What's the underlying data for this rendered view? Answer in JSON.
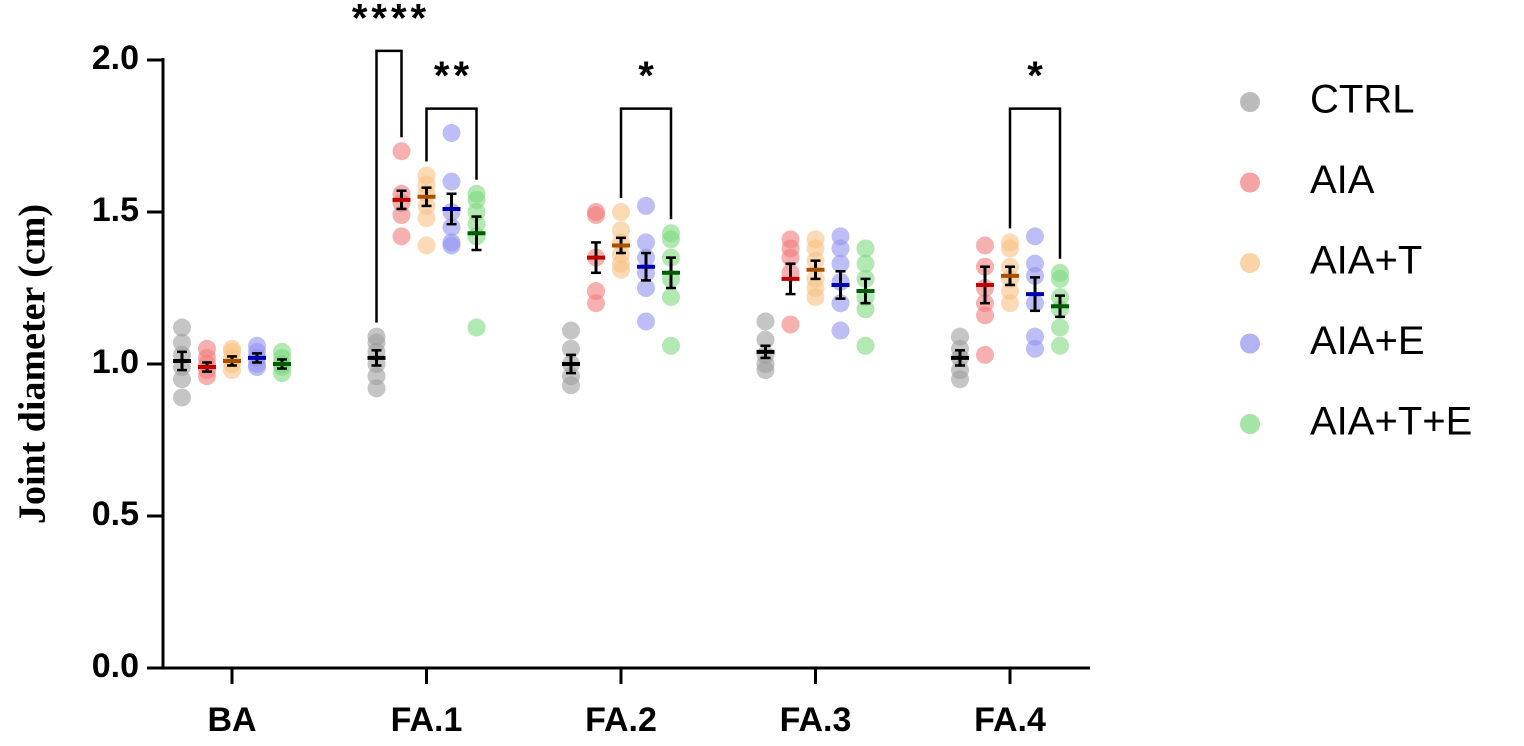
{
  "chart_data": {
    "type": "dot",
    "y_label": "Joint diameter (cm)",
    "categories": [
      "BA",
      "FA.1",
      "FA.2",
      "FA.3",
      "FA.4"
    ],
    "ylim": [
      0,
      2
    ],
    "yticks": [
      {
        "value": 0,
        "label": "0.0"
      },
      {
        "value": 0.5,
        "label": "0.5"
      },
      {
        "value": 1,
        "label": "1.0"
      },
      {
        "value": 1.5,
        "label": "1.5"
      },
      {
        "value": 2,
        "label": "2.0"
      }
    ],
    "series": [
      {
        "name": "CTRL",
        "color": "#9e9e9e",
        "mean_color": "#000000",
        "points": [
          [
            1.12,
            1.07,
            1.03,
            0.99,
            0.95,
            0.89
          ],
          [
            1.09,
            1.07,
            1.04,
            1.0,
            0.96,
            0.92
          ],
          [
            1.11,
            1.05,
            1.0,
            0.96,
            0.93
          ],
          [
            1.14,
            1.08,
            1.03,
            1.0,
            0.98
          ],
          [
            1.09,
            1.05,
            1.02,
            0.98,
            0.95
          ]
        ],
        "mean": [
          1.01,
          1.02,
          1.0,
          1.04,
          1.02
        ],
        "sem": [
          0.03,
          0.025,
          0.03,
          0.02,
          0.025
        ]
      },
      {
        "name": "AIA",
        "color": "#f27c7c",
        "mean_color": "#c00000",
        "points": [
          [
            1.05,
            1.02,
            1.0,
            0.98,
            0.96
          ],
          [
            1.7,
            1.56,
            1.53,
            1.49,
            1.42
          ],
          [
            1.5,
            1.49,
            1.35,
            1.24,
            1.2
          ],
          [
            1.41,
            1.38,
            1.35,
            1.3,
            1.13
          ],
          [
            1.39,
            1.32,
            1.25,
            1.2,
            1.16,
            1.03
          ]
        ],
        "mean": [
          0.99,
          1.54,
          1.35,
          1.28,
          1.26
        ],
        "sem": [
          0.015,
          0.03,
          0.05,
          0.05,
          0.06
        ]
      },
      {
        "name": "AIA+T",
        "color": "#f9c183",
        "mean_color": "#a85000",
        "points": [
          [
            1.05,
            1.04,
            1.02,
            1.0,
            0.98
          ],
          [
            1.62,
            1.59,
            1.56,
            1.52,
            1.48,
            1.39
          ],
          [
            1.5,
            1.44,
            1.4,
            1.36,
            1.33,
            1.31
          ],
          [
            1.41,
            1.38,
            1.34,
            1.28,
            1.25,
            1.22
          ],
          [
            1.4,
            1.38,
            1.32,
            1.28,
            1.24,
            1.2
          ]
        ],
        "mean": [
          1.01,
          1.55,
          1.39,
          1.31,
          1.29
        ],
        "sem": [
          0.015,
          0.03,
          0.025,
          0.03,
          0.03
        ]
      },
      {
        "name": "AIA+E",
        "color": "#9393f0",
        "mean_color": "#0000b0",
        "points": [
          [
            1.06,
            1.04,
            1.02,
            1.0,
            0.99
          ],
          [
            1.76,
            1.6,
            1.5,
            1.45,
            1.4,
            1.39
          ],
          [
            1.52,
            1.4,
            1.35,
            1.3,
            1.25,
            1.14
          ],
          [
            1.42,
            1.38,
            1.33,
            1.27,
            1.2,
            1.11
          ],
          [
            1.42,
            1.33,
            1.29,
            1.2,
            1.09,
            1.05
          ]
        ],
        "mean": [
          1.02,
          1.51,
          1.32,
          1.26,
          1.23
        ],
        "sem": [
          0.015,
          0.05,
          0.045,
          0.045,
          0.055
        ]
      },
      {
        "name": "AIA+T+E",
        "color": "#7ed87e",
        "mean_color": "#005c00",
        "points": [
          [
            1.04,
            1.02,
            1.0,
            0.99,
            0.97
          ],
          [
            1.56,
            1.54,
            1.5,
            1.46,
            1.42,
            1.12
          ],
          [
            1.43,
            1.41,
            1.35,
            1.28,
            1.22,
            1.06
          ],
          [
            1.38,
            1.33,
            1.28,
            1.22,
            1.18,
            1.06
          ],
          [
            1.3,
            1.28,
            1.22,
            1.18,
            1.12,
            1.06
          ]
        ],
        "mean": [
          1.0,
          1.43,
          1.3,
          1.24,
          1.19
        ],
        "sem": [
          0.015,
          0.055,
          0.05,
          0.04,
          0.035
        ]
      }
    ],
    "significance": [
      {
        "label": "****",
        "category": 1,
        "between": [
          0,
          1
        ],
        "y": 2.03
      },
      {
        "label": "**",
        "category": 1,
        "between": [
          2,
          4
        ],
        "y": 1.84
      },
      {
        "label": "*",
        "category": 2,
        "between": [
          2,
          4
        ],
        "y": 1.84
      },
      {
        "label": "*",
        "category": 4,
        "between": [
          2,
          4
        ],
        "y": 1.84
      }
    ]
  }
}
